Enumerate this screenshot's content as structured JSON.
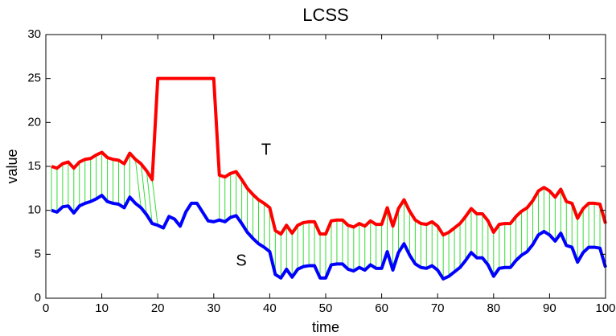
{
  "chart_data": {
    "type": "line",
    "title": "LCSS",
    "xlabel": "time",
    "ylabel": "value",
    "x": [
      1,
      2,
      3,
      4,
      5,
      6,
      7,
      8,
      9,
      10,
      11,
      12,
      13,
      14,
      15,
      16,
      17,
      18,
      19,
      20,
      21,
      22,
      23,
      24,
      25,
      26,
      27,
      28,
      29,
      30,
      31,
      32,
      33,
      34,
      35,
      36,
      37,
      38,
      39,
      40,
      41,
      42,
      43,
      44,
      45,
      46,
      47,
      48,
      49,
      50,
      51,
      52,
      53,
      54,
      55,
      56,
      57,
      58,
      59,
      60,
      61,
      62,
      63,
      64,
      65,
      66,
      67,
      68,
      69,
      70,
      71,
      72,
      73,
      74,
      75,
      76,
      77,
      78,
      79,
      80,
      81,
      82,
      83,
      84,
      85,
      86,
      87,
      88,
      89,
      90,
      91,
      92,
      93,
      94,
      95,
      96,
      97,
      98,
      99,
      100
    ],
    "series": [
      {
        "name": "T",
        "color": "#ff0000",
        "values": [
          15,
          14.8,
          15.3,
          15.5,
          14.8,
          15.5,
          15.8,
          15.9,
          16.3,
          16.6,
          16,
          15.8,
          15.7,
          15.3,
          16.5,
          15.8,
          15.3,
          14.5,
          13.5,
          25,
          25,
          25,
          25,
          25,
          25,
          25,
          25,
          25,
          25,
          25,
          14,
          13.8,
          14.2,
          14.4,
          13.5,
          12.5,
          11.8,
          11.2,
          10.8,
          10.3,
          7.7,
          7.3,
          8.3,
          7.4,
          8.3,
          8.6,
          8.7,
          8.7,
          7.3,
          7.3,
          8.8,
          8.9,
          8.9,
          8.3,
          8.1,
          8.5,
          8.2,
          8.8,
          8.4,
          8.4,
          10.3,
          8.2,
          10.2,
          11.2,
          9.9,
          8.9,
          8.5,
          8.4,
          8.7,
          8.2,
          7.2,
          7.5,
          8,
          8.5,
          9.3,
          10.2,
          9.6,
          9.6,
          8.8,
          7.5,
          8.4,
          8.5,
          8.5,
          9.3,
          9.9,
          10.3,
          11.1,
          12.2,
          12.6,
          12.2,
          11.5,
          12.4,
          11,
          10.8,
          9.1,
          10.2,
          10.8,
          10.8,
          10.7,
          8.5
        ]
      },
      {
        "name": "S",
        "color": "#0000ff",
        "values": [
          10,
          9.8,
          10.4,
          10.5,
          9.7,
          10.5,
          10.8,
          11,
          11.3,
          11.7,
          11,
          10.8,
          10.7,
          10.3,
          11.5,
          10.8,
          10.3,
          9.5,
          8.5,
          8.3,
          8,
          9.3,
          9,
          8.2,
          9.8,
          10.8,
          10.8,
          9.8,
          8.8,
          8.7,
          8.9,
          8.7,
          9.2,
          9.4,
          8.5,
          7.5,
          6.8,
          6.2,
          5.8,
          5.3,
          2.7,
          2.3,
          3.3,
          2.4,
          3.3,
          3.6,
          3.7,
          3.7,
          2.3,
          2.3,
          3.8,
          3.9,
          3.9,
          3.3,
          3.1,
          3.5,
          3.2,
          3.8,
          3.4,
          3.4,
          5.3,
          3.2,
          5.2,
          6.2,
          4.9,
          3.9,
          3.5,
          3.4,
          3.7,
          3.2,
          2.2,
          2.5,
          3,
          3.5,
          4.3,
          5.2,
          4.6,
          4.6,
          3.8,
          2.5,
          3.4,
          3.5,
          3.5,
          4.3,
          4.9,
          5.3,
          6.1,
          7.2,
          7.6,
          7.2,
          6.5,
          7.4,
          6,
          5.8,
          4.1,
          5.2,
          5.8,
          5.8,
          5.7,
          3.5
        ]
      }
    ],
    "matches": [
      [
        1,
        1
      ],
      [
        2,
        2
      ],
      [
        3,
        3
      ],
      [
        4,
        4
      ],
      [
        5,
        5
      ],
      [
        6,
        6
      ],
      [
        7,
        7
      ],
      [
        8,
        8
      ],
      [
        9,
        9
      ],
      [
        10,
        10
      ],
      [
        11,
        11
      ],
      [
        12,
        12
      ],
      [
        13,
        13
      ],
      [
        14,
        14
      ],
      [
        15,
        15
      ],
      [
        16,
        17
      ],
      [
        17,
        18
      ],
      [
        18,
        19
      ],
      [
        19,
        20
      ],
      [
        31,
        31
      ],
      [
        32,
        32
      ],
      [
        33,
        33
      ],
      [
        34,
        34
      ],
      [
        35,
        35
      ],
      [
        36,
        36
      ],
      [
        37,
        37
      ],
      [
        38,
        38
      ],
      [
        39,
        39
      ],
      [
        40,
        40
      ],
      [
        41,
        41
      ],
      [
        42,
        42
      ],
      [
        43,
        43
      ],
      [
        44,
        44
      ],
      [
        45,
        45
      ],
      [
        46,
        46
      ],
      [
        47,
        47
      ],
      [
        48,
        48
      ],
      [
        49,
        49
      ],
      [
        50,
        50
      ],
      [
        51,
        51
      ],
      [
        52,
        52
      ],
      [
        53,
        53
      ],
      [
        54,
        54
      ],
      [
        55,
        55
      ],
      [
        56,
        56
      ],
      [
        57,
        57
      ],
      [
        58,
        58
      ],
      [
        59,
        59
      ],
      [
        60,
        60
      ],
      [
        61,
        61
      ],
      [
        62,
        62
      ],
      [
        63,
        63
      ],
      [
        64,
        64
      ],
      [
        65,
        65
      ],
      [
        66,
        66
      ],
      [
        67,
        67
      ],
      [
        68,
        68
      ],
      [
        69,
        69
      ],
      [
        70,
        70
      ],
      [
        71,
        71
      ],
      [
        72,
        72
      ],
      [
        73,
        73
      ],
      [
        74,
        74
      ],
      [
        75,
        75
      ],
      [
        76,
        76
      ],
      [
        77,
        77
      ],
      [
        78,
        78
      ],
      [
        79,
        79
      ],
      [
        80,
        80
      ],
      [
        81,
        81
      ],
      [
        82,
        82
      ],
      [
        83,
        83
      ],
      [
        84,
        84
      ],
      [
        85,
        85
      ],
      [
        86,
        86
      ],
      [
        87,
        87
      ],
      [
        88,
        88
      ],
      [
        89,
        89
      ],
      [
        90,
        90
      ],
      [
        91,
        91
      ],
      [
        92,
        92
      ],
      [
        93,
        93
      ],
      [
        94,
        94
      ],
      [
        95,
        95
      ],
      [
        96,
        96
      ],
      [
        97,
        97
      ],
      [
        98,
        98
      ],
      [
        99,
        99
      ]
    ],
    "match_color": "#33dd33",
    "xlim": [
      0,
      100
    ],
    "xticks": [
      0,
      10,
      20,
      30,
      40,
      50,
      60,
      70,
      80,
      90,
      100
    ],
    "ylim": [
      0,
      30
    ],
    "yticks": [
      0,
      5,
      10,
      15,
      20,
      25,
      30
    ],
    "grid": false
  }
}
